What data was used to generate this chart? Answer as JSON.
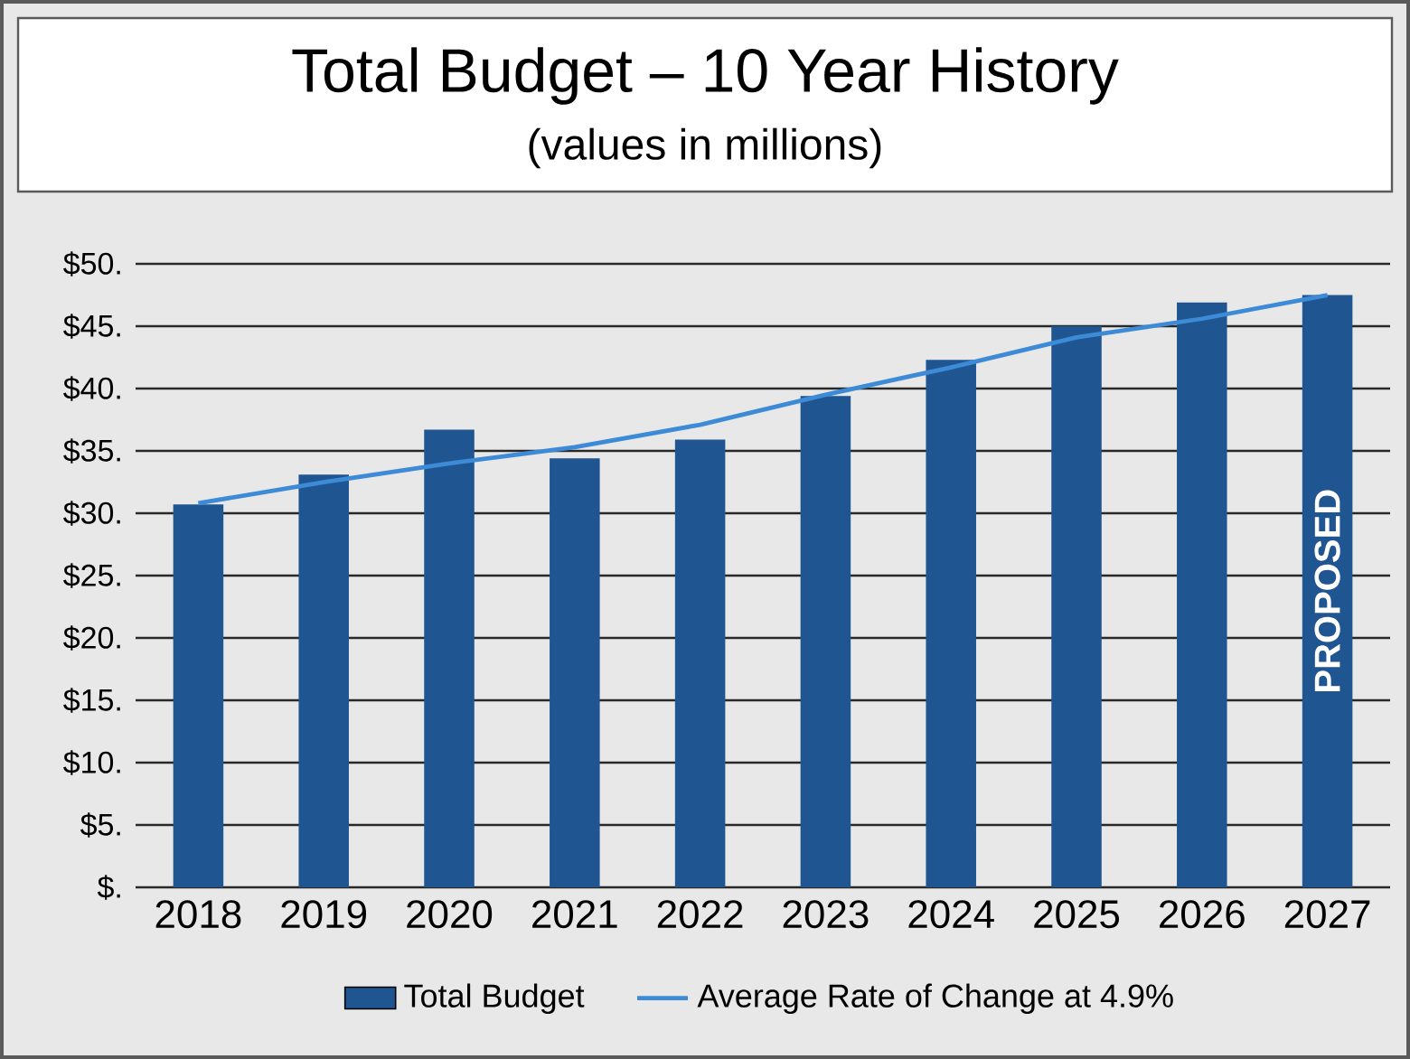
{
  "chart_data": {
    "type": "bar",
    "title": "Total Budget – 10 Year History",
    "subtitle": "(values in millions)",
    "categories": [
      "2018",
      "2019",
      "2020",
      "2021",
      "2022",
      "2023",
      "2024",
      "2025",
      "2026",
      "2027"
    ],
    "series": [
      {
        "name": "Total Budget",
        "color": "#1f5591",
        "values": [
          30.7,
          33.1,
          36.7,
          34.4,
          35.9,
          39.4,
          42.3,
          45.0,
          46.9,
          47.5
        ]
      },
      {
        "name": "Average Rate of Change at 4.9%",
        "type": "line",
        "color": "#3d8ad6",
        "values": [
          30.8,
          32.5,
          34.0,
          35.3,
          37.1,
          39.5,
          41.7,
          44.1,
          45.6,
          47.5
        ]
      }
    ],
    "ylim": [
      0,
      50
    ],
    "yticks": [
      {
        "value": 0,
        "label": "$."
      },
      {
        "value": 5,
        "label": "$5."
      },
      {
        "value": 10,
        "label": "$10."
      },
      {
        "value": 15,
        "label": "$15."
      },
      {
        "value": 20,
        "label": "$20."
      },
      {
        "value": 25,
        "label": "$25."
      },
      {
        "value": 30,
        "label": "$30."
      },
      {
        "value": 35,
        "label": "$35."
      },
      {
        "value": 40,
        "label": "$40."
      },
      {
        "value": 45,
        "label": "$45."
      },
      {
        "value": 50,
        "label": "$50."
      }
    ],
    "grid": "y",
    "legend": "bottom",
    "annotations": [
      "PROPOSED"
    ]
  }
}
